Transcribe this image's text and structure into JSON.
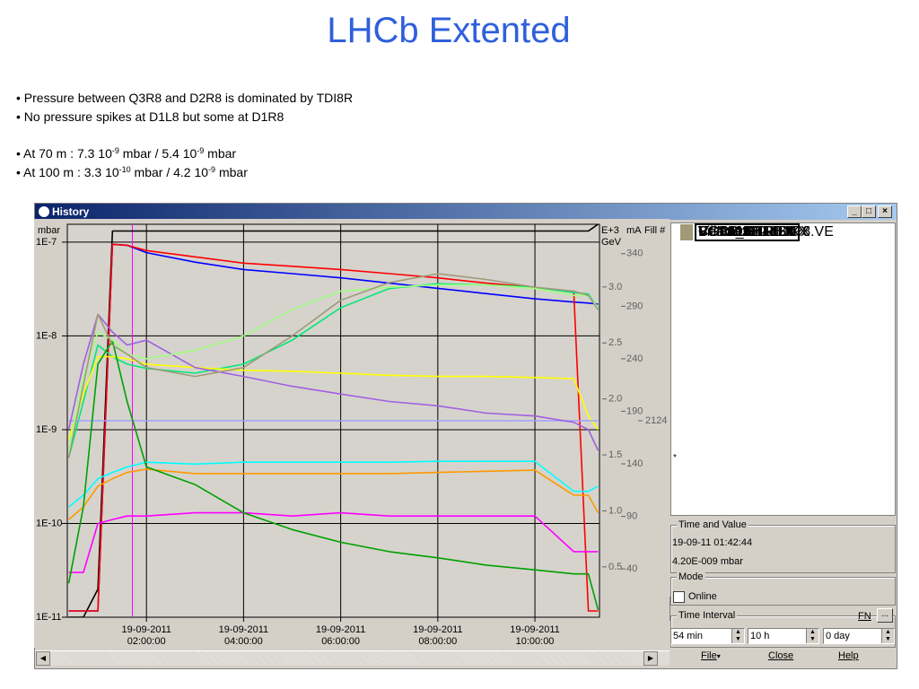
{
  "slide": {
    "title": "LHCb Extented",
    "bullets": [
      {
        "parts": [
          "Pressure between Q3R8 and D2R8 is dominated by TDI8R"
        ]
      },
      {
        "parts": [
          "No pressure spikes at D1L8 but some at D1R8"
        ]
      },
      {
        "parts": [
          "At 70 m : 7.3 10",
          "-9",
          " mbar / 5.4 10",
          "-9",
          " mbar"
        ]
      },
      {
        "parts": [
          "At 100 m : 3.3 10",
          "-10",
          " mbar / 4.2 10",
          "-9",
          " mbar"
        ]
      }
    ]
  },
  "window": {
    "title": "History",
    "legend_mark": "*",
    "time_value": {
      "title": "Time and Value",
      "time": "19-09-11 01:42:44",
      "value": "4.20E-009 mbar"
    },
    "mode": {
      "title": "Mode",
      "online": "Online"
    },
    "time_interval": {
      "title": "Time Interval",
      "fn": "FN",
      "more": "...",
      "fields": [
        "54 min",
        "10 h",
        "0 day"
      ]
    },
    "buttons": [
      "File",
      "Close",
      "Help"
    ]
  },
  "chart_data": {
    "type": "line",
    "ylabel": "mbar",
    "log_scale": true,
    "grid": true,
    "x": [
      0.4,
      0.7,
      1.0,
      1.3,
      1.6,
      2.0,
      3.0,
      4.0,
      5.0,
      6.0,
      7.0,
      8.0,
      9.0,
      10.0,
      10.8,
      11.1,
      11.3
    ],
    "xlim": [
      0.37,
      11.33
    ],
    "xticks": [
      {
        "value": 2,
        "label": "19-09-2011 02:00:00"
      },
      {
        "value": 4,
        "label": "19-09-2011 04:00:00"
      },
      {
        "value": 6,
        "label": "19-09-2011 06:00:00"
      },
      {
        "value": 8,
        "label": "19-09-2011 08:00:00"
      },
      {
        "value": 10,
        "label": "19-09-2011 10:00:00"
      }
    ],
    "ylim": [
      1e-11,
      1.55e-07
    ],
    "yticks": [
      {
        "value": 1e-11,
        "label": "1E-11"
      },
      {
        "value": 1e-10,
        "label": "1E-10"
      },
      {
        "value": 1e-09,
        "label": "1E-9"
      },
      {
        "value": 1e-08,
        "label": "1E-8"
      },
      {
        "value": 1e-07,
        "label": "1E-7"
      }
    ],
    "y2label_top": "E+3",
    "y2label": "GeV",
    "y2lim": [
      0.05,
      3.56
    ],
    "y2ticks": [
      {
        "value": 0.5,
        "label": "0.5"
      },
      {
        "value": 1,
        "label": "1.0"
      },
      1.5,
      {
        "value": 2,
        "label": "2.0"
      },
      2.5,
      {
        "value": 3,
        "label": "3.0"
      }
    ],
    "y3label": "mA",
    "y3lim": [
      -6,
      368
    ],
    "y3ticks": [
      40,
      90,
      140,
      190,
      240,
      290,
      340
    ],
    "y4label": "Fill #",
    "y4lim": [
      2120,
      2128
    ],
    "y4ticks": [
      2124
    ],
    "series": [
      {
        "name": "Beam_E",
        "color": "#000000",
        "axis": "y2",
        "values": [
          0.05,
          0.05,
          0.3,
          3.5,
          3.5,
          3.5,
          3.5,
          3.5,
          3.5,
          3.5,
          3.5,
          3.5,
          3.5,
          3.5,
          3.5,
          3.5,
          3.56
        ]
      },
      {
        "name": "CurMa.B",
        "color": "#0000ff",
        "axis": "y3",
        "values": [
          0,
          0,
          0,
          349,
          348,
          341,
          332,
          325,
          321,
          317,
          312,
          307,
          302,
          297,
          294,
          293,
          292
        ]
      },
      {
        "name": "CurMa.R",
        "color": "#ff0000",
        "axis": "y3",
        "values": [
          0,
          0,
          0,
          349,
          348,
          343,
          337,
          331,
          328,
          325,
          321,
          317,
          312,
          308,
          304,
          0,
          0
        ]
      },
      {
        "name": "VGI.219.1L8.X",
        "color": "#ff9900",
        "values": [
          1.1e-10,
          1.5e-10,
          2.5e-10,
          3e-10,
          3.5e-10,
          3.8e-10,
          3.4e-10,
          3.4e-10,
          3.4e-10,
          3.4e-10,
          3.4e-10,
          3.5e-10,
          3.6e-10,
          3.7e-10,
          2e-10,
          2e-10,
          1.3e-10
        ]
      },
      {
        "name": "VGPB.33.1L8.X",
        "color": "#00e878",
        "values": [
          5e-10,
          2e-09,
          8e-09,
          6e-09,
          5e-09,
          4.5e-09,
          4e-09,
          5e-09,
          9e-09,
          2e-08,
          3.2e-08,
          3.6e-08,
          3.5e-08,
          3.3e-08,
          2.9e-08,
          2.8e-08,
          2e-08
        ]
      },
      {
        "name": "VGPC.PE411.IP8.VE",
        "color": "#ffff00",
        "values": [
          8e-10,
          2.4e-09,
          6e-09,
          6e-09,
          5.7e-09,
          5e-09,
          4.6e-09,
          4.3e-09,
          4.2e-09,
          4e-09,
          3.8e-09,
          3.7e-09,
          3.7e-09,
          3.6e-09,
          3.5e-09,
          1.4e-09,
          1e-09
        ]
      },
      {
        "name": "VGI.193.1R8.X",
        "color": "#ff00ff",
        "values": [
          3e-11,
          3e-11,
          1e-10,
          1.1e-10,
          1.2e-10,
          1.2e-10,
          1.3e-10,
          1.3e-10,
          1.2e-10,
          1.3e-10,
          1.2e-10,
          1.2e-10,
          1.2e-10,
          1.2e-10,
          5e-11,
          5e-11,
          5e-11
        ]
      },
      {
        "name": "VGI.219.1R8.X",
        "color": "#00ffff",
        "values": [
          1.5e-10,
          2e-10,
          3e-10,
          3.5e-10,
          4e-10,
          4.5e-10,
          4.3e-10,
          4.5e-10,
          4.5e-10,
          4.5e-10,
          4.5e-10,
          4.6e-10,
          4.6e-10,
          4.6e-10,
          2.2e-10,
          2.2e-10,
          2.5e-10
        ]
      },
      {
        "name": "FillNum",
        "color": "#a0a0ff",
        "axis": "y4",
        "values": [
          2124,
          2124,
          2124,
          2124,
          2124,
          2124,
          2124,
          2124,
          2124,
          2124,
          2124,
          2124,
          2124,
          2124,
          2124,
          2124,
          2124
        ]
      },
      {
        "name": "VGI.416.4L8.X",
        "color": "#00a000",
        "values": [
          2.3e-11,
          1.5e-10,
          5e-09,
          8.9e-09,
          2e-09,
          4e-10,
          2.6e-10,
          1.3e-10,
          8.6e-11,
          6.3e-11,
          5e-11,
          4.3e-11,
          3.6e-11,
          3.2e-11,
          2.9e-11,
          2.9e-11,
          1.2e-11
        ]
      },
      {
        "name": "VGPB.120.4L8.X",
        "color": "#a060e0",
        "values": [
          1e-09,
          5e-09,
          1.7e-08,
          1.1e-08,
          8e-09,
          9e-09,
          4.6e-09,
          3.7e-09,
          2.9e-09,
          2.4e-09,
          2e-09,
          1.8e-09,
          1.5e-09,
          1.4e-09,
          1.2e-09,
          1e-09,
          6e-10
        ]
      },
      {
        "name": "VGPB.120.4R8.X",
        "color": "#a0ff80",
        "values": [
          6e-10,
          3.7e-09,
          1.1e-08,
          9e-09,
          6.4e-09,
          5.7e-09,
          7e-09,
          1e-08,
          1.9e-08,
          3e-08,
          3.3e-08,
          3.5e-08,
          3.5e-08,
          3.2e-08,
          2.7e-08,
          2.7e-08,
          2e-08
        ]
      },
      {
        "name": "VGI.415.4R8.X",
        "color": "#a09a78",
        "values": [
          5e-10,
          3e-09,
          1.7e-08,
          8e-09,
          6.4e-09,
          4.6e-09,
          3.7e-09,
          4.6e-09,
          1e-08,
          2.4e-08,
          3.7e-08,
          4.6e-08,
          4e-08,
          3.3e-08,
          3e-08,
          2.7e-08,
          1.9e-08
        ]
      }
    ]
  }
}
